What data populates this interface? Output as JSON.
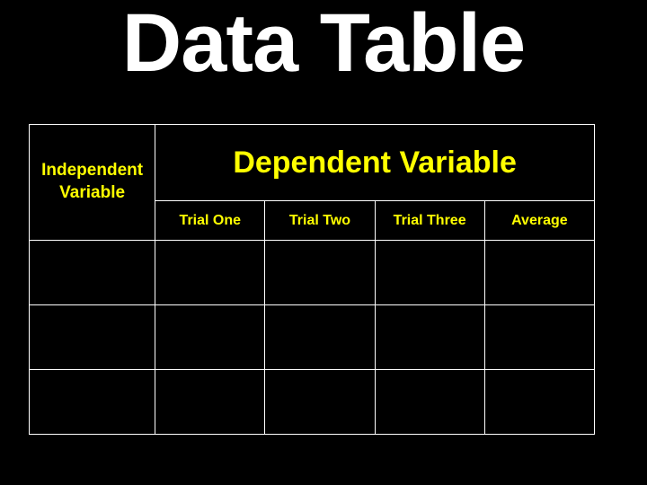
{
  "title": "Data Table",
  "table": {
    "independent_label": "Independent Variable",
    "dependent_label": "Dependent Variable",
    "columns": [
      "Trial One",
      "Trial Two",
      "Trial Three",
      "Average"
    ],
    "rows": [
      [
        "",
        "",
        "",
        "",
        ""
      ],
      [
        "",
        "",
        "",
        "",
        ""
      ],
      [
        "",
        "",
        "",
        "",
        ""
      ]
    ],
    "border_color": "#ffffff",
    "text_color": "#ffff00",
    "background_color": "#000000",
    "title_color": "#ffffff",
    "title_fontsize": 92,
    "indep_fontsize": 19,
    "dep_fontsize": 34,
    "trial_fontsize": 16,
    "col_width_indep": 140,
    "col_width_trial": 122,
    "header_row_height": 85,
    "trial_row_height": 44,
    "data_row_height": 72
  }
}
